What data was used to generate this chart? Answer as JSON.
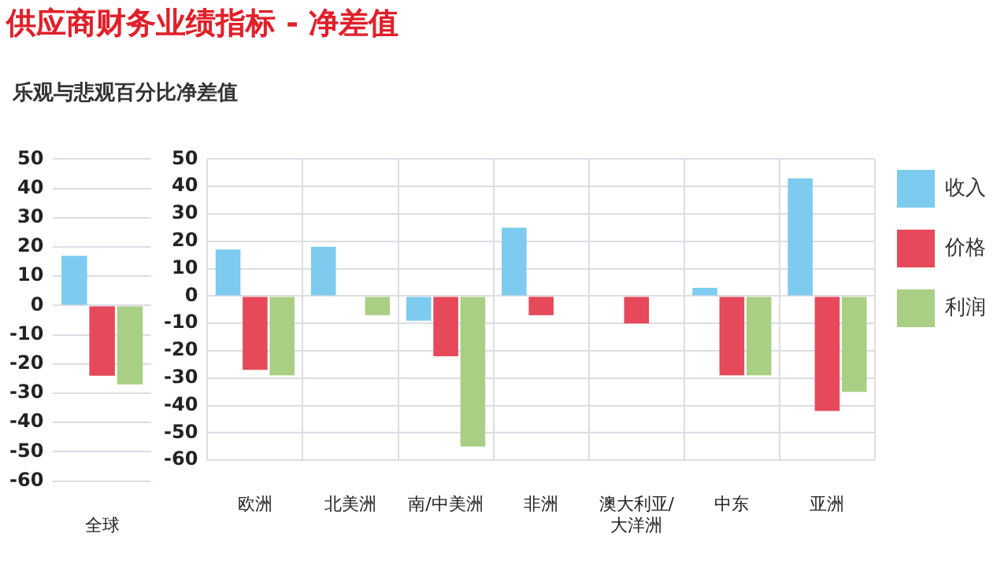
{
  "chart_data": [
    {
      "type": "bar",
      "title": "供应商财务业绩指标 - 净差值",
      "subtitle": "乐观与悲观百分比净差值",
      "categories": [
        "全球"
      ],
      "series": [
        {
          "color": "#7dcbef",
          "values": [
            17
          ]
        },
        {
          "color": "#e5495a",
          "values": [
            -24
          ]
        },
        {
          "color": "#a9cf84",
          "values": [
            -27
          ]
        }
      ],
      "ylim": [
        -60,
        50
      ],
      "yticks": [
        -60,
        -50,
        -40,
        -30,
        -20,
        -10,
        0,
        10,
        20,
        30,
        40,
        50
      ],
      "grid": "y",
      "legend": false
    },
    {
      "type": "bar",
      "categories": [
        "欧洲",
        "北美洲",
        "南/中美洲",
        "非洲",
        "澳大利亚/\n大洋洲",
        "中东",
        "亚洲"
      ],
      "series": [
        {
          "name": "收入",
          "color": "#7dcbef",
          "values": [
            17,
            18,
            -9,
            25,
            null,
            3,
            43
          ]
        },
        {
          "name": "价格",
          "color": "#e5495a",
          "values": [
            -27,
            null,
            -22,
            -7,
            -10,
            -29,
            -42
          ]
        },
        {
          "name": "利润",
          "color": "#a9cf84",
          "values": [
            -29,
            -7,
            -55,
            null,
            null,
            -29,
            -35
          ]
        }
      ],
      "ylim": [
        -60,
        50
      ],
      "yticks": [
        -60,
        -50,
        -40,
        -30,
        -20,
        -10,
        0,
        10,
        20,
        30,
        40,
        50
      ],
      "grid": true,
      "legend": "top right"
    }
  ]
}
